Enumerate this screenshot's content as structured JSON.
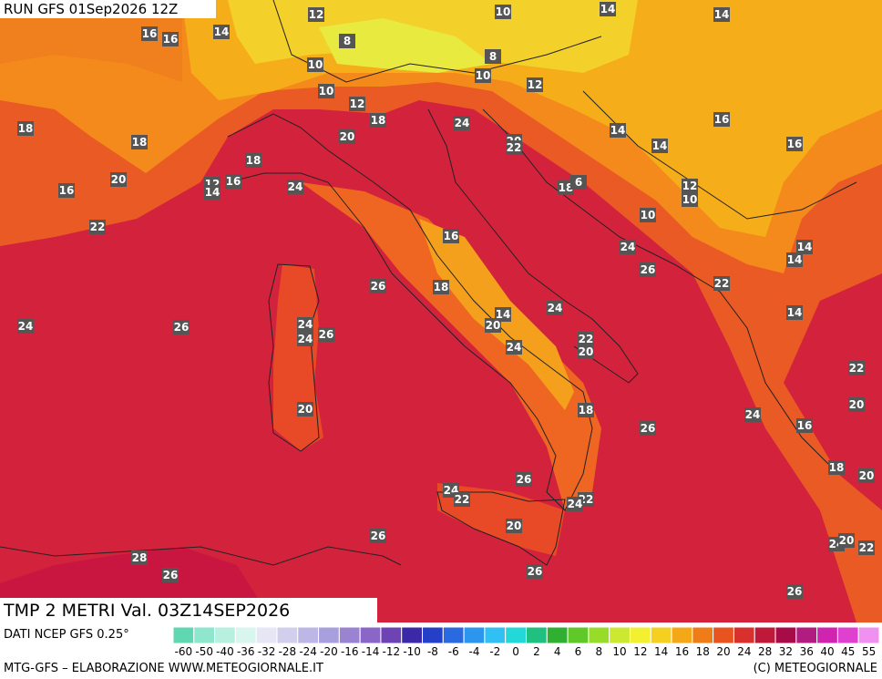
{
  "header": {
    "run": "RUN GFS 01Sep2026 12Z",
    "title": "TMP 2 METRI Val. 03Z14SEP2026",
    "source": "DATI NCEP GFS 0.25°"
  },
  "footer": {
    "left": "MTG-GFS – ELABORAZIONE WWW.METEOGIORNALE.IT",
    "right": "(C) METEOGIORNALE"
  },
  "colorbar": {
    "labels": [
      -60,
      -50,
      -40,
      -36,
      -32,
      -28,
      -24,
      -20,
      -16,
      -14,
      -12,
      -10,
      -8,
      -6,
      -4,
      -2,
      0,
      2,
      4,
      6,
      8,
      10,
      12,
      14,
      16,
      18,
      20,
      24,
      28,
      32,
      36,
      40,
      45,
      55
    ],
    "colors": [
      "#5fd7b0",
      "#8ee6cc",
      "#b7f0df",
      "#d8f6ee",
      "#e6e6f4",
      "#d0d0ee",
      "#bcb8e6",
      "#a8a0de",
      "#9a84d2",
      "#8a66c6",
      "#6e44b4",
      "#3a2aa8",
      "#2440c8",
      "#2a6ae0",
      "#2c96ee",
      "#30c0f4",
      "#22d8d8",
      "#20c080",
      "#30b030",
      "#60c828",
      "#98dc2a",
      "#cce830",
      "#f2f030",
      "#f6d020",
      "#f4a818",
      "#f07c18",
      "#e85420",
      "#d8302c",
      "#c01838",
      "#a80c48",
      "#b01c80",
      "#d024b0",
      "#e040d0",
      "#f090f0"
    ]
  },
  "map_labels": [
    12,
    10,
    14,
    14,
    16,
    16,
    14,
    8,
    8,
    10,
    10,
    12,
    10,
    12,
    18,
    24,
    16,
    18,
    18,
    14,
    20,
    20,
    22,
    14,
    16,
    18,
    20,
    16,
    12,
    14,
    24,
    16,
    18,
    12,
    10,
    6,
    10,
    22,
    16,
    24,
    14,
    14,
    26,
    22,
    26,
    18,
    24,
    26,
    24,
    26,
    24,
    24,
    14,
    20,
    14,
    22,
    20,
    24,
    22,
    20,
    18,
    20,
    26,
    24,
    16,
    18,
    20,
    26,
    24,
    22,
    22,
    24,
    20,
    26,
    24,
    20,
    22,
    28,
    26,
    26,
    26
  ]
}
